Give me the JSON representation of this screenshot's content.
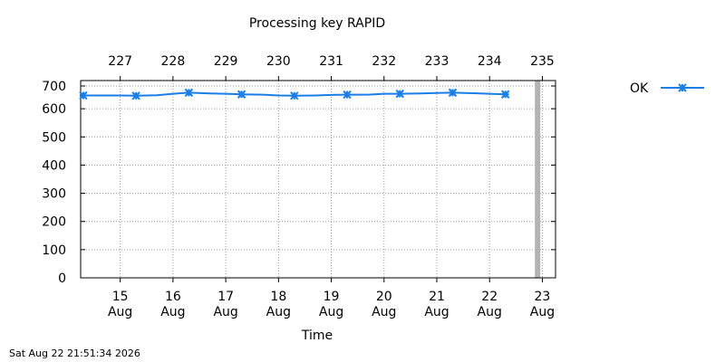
{
  "chart_data": {
    "type": "line",
    "title": "Processing key RAPID",
    "xlabel": "Time",
    "ylabel": "",
    "ylim": [
      0,
      700
    ],
    "y_ticks": [
      "0",
      "100",
      "200",
      "300",
      "400",
      "500",
      "600",
      "700"
    ],
    "x_range_days": [
      14.25,
      23.25
    ],
    "bottom_ticks": [
      {
        "day": 15,
        "day_label": "15",
        "month_label": "Aug"
      },
      {
        "day": 16,
        "day_label": "16",
        "month_label": "Aug"
      },
      {
        "day": 17,
        "day_label": "17",
        "month_label": "Aug"
      },
      {
        "day": 18,
        "day_label": "18",
        "month_label": "Aug"
      },
      {
        "day": 19,
        "day_label": "19",
        "month_label": "Aug"
      },
      {
        "day": 20,
        "day_label": "20",
        "month_label": "Aug"
      },
      {
        "day": 21,
        "day_label": "21",
        "month_label": "Aug"
      },
      {
        "day": 22,
        "day_label": "22",
        "month_label": "Aug"
      },
      {
        "day": 23,
        "day_label": "23",
        "month_label": "Aug"
      }
    ],
    "top_ticks": [
      {
        "day": 15,
        "label": "227"
      },
      {
        "day": 16,
        "label": "228"
      },
      {
        "day": 17,
        "label": "229"
      },
      {
        "day": 18,
        "label": "230"
      },
      {
        "day": 19,
        "label": "231"
      },
      {
        "day": 20,
        "label": "232"
      },
      {
        "day": 21,
        "label": "233"
      },
      {
        "day": 22,
        "label": "234"
      },
      {
        "day": 23,
        "label": "235"
      }
    ],
    "now_marker_day": 22.91,
    "grid": true,
    "legend_position": "top-right outside",
    "series": [
      {
        "name": "OK",
        "color": "#1a7ee8",
        "marker": "star",
        "x": [
          14.3,
          14.7,
          15.0,
          15.3,
          15.7,
          16.0,
          16.3,
          16.7,
          17.0,
          17.3,
          17.7,
          18.0,
          18.3,
          18.7,
          19.0,
          19.3,
          19.7,
          20.0,
          20.3,
          20.7,
          21.0,
          21.3,
          21.7,
          22.0,
          22.3
        ],
        "y": [
          647,
          647,
          647,
          646,
          648,
          653,
          657,
          654,
          653,
          651,
          650,
          647,
          646,
          647,
          649,
          650,
          650,
          653,
          653,
          654,
          656,
          657,
          655,
          653,
          651
        ],
        "marker_x": [
          14.3,
          15.3,
          16.3,
          17.3,
          18.3,
          19.3,
          20.3,
          21.3,
          22.3
        ]
      }
    ],
    "timestamp": "Sat Aug 22 21:51:34 2026"
  },
  "colors": {
    "series": "#1a7ee8",
    "now_marker": "#b3b3b3",
    "grid": "#9a9a9a"
  }
}
